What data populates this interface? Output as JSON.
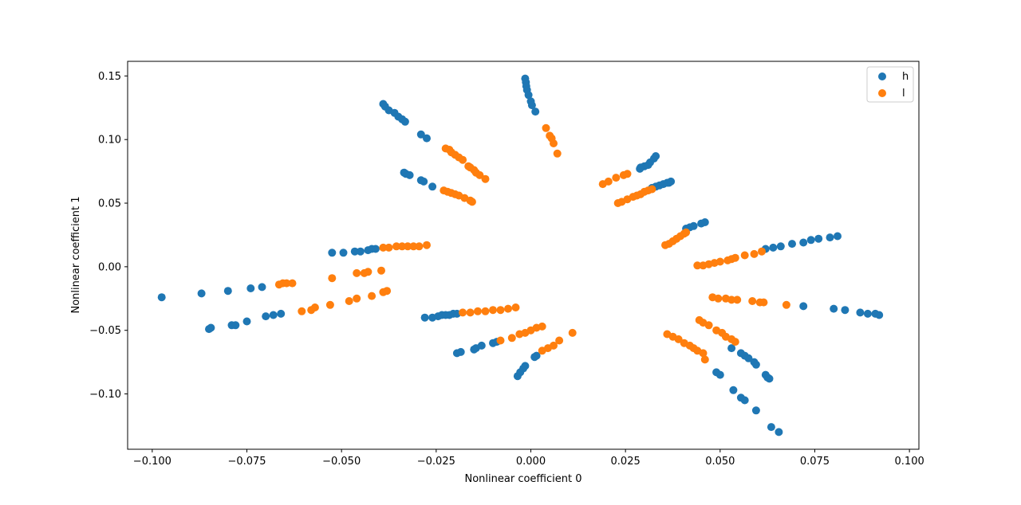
{
  "chart_data": {
    "type": "scatter",
    "title": "",
    "xlabel": "Nonlinear coefficient 0",
    "ylabel": "Nonlinear coefficient 1",
    "xlim": [
      -0.1065,
      0.1025
    ],
    "ylim": [
      -0.1435,
      0.1615
    ],
    "xticks": [
      -0.1,
      -0.075,
      -0.05,
      -0.025,
      0.0,
      0.025,
      0.05,
      0.075,
      0.1
    ],
    "xtick_labels": [
      "−0.100",
      "−0.075",
      "−0.050",
      "−0.025",
      "0.000",
      "0.025",
      "0.050",
      "0.075",
      "0.100"
    ],
    "yticks": [
      -0.1,
      -0.05,
      0.0,
      0.05,
      0.1,
      0.15
    ],
    "ytick_labels": [
      "−0.10",
      "−0.05",
      "0.00",
      "0.05",
      "0.10",
      "0.15"
    ],
    "grid": false,
    "legend_position": "top-right",
    "series": [
      {
        "name": "h",
        "color": "#1f77b4",
        "points": [
          [
            -0.0015,
            0.148
          ],
          [
            -0.0013,
            0.145
          ],
          [
            -0.0012,
            0.142
          ],
          [
            -0.001,
            0.139
          ],
          [
            -0.0006,
            0.135
          ],
          [
            0.0,
            0.13
          ],
          [
            0.0003,
            0.127
          ],
          [
            0.0012,
            0.122
          ],
          [
            -0.039,
            0.128
          ],
          [
            -0.0385,
            0.126
          ],
          [
            -0.0375,
            0.123
          ],
          [
            -0.036,
            0.121
          ],
          [
            -0.035,
            0.118
          ],
          [
            -0.034,
            0.116
          ],
          [
            -0.0332,
            0.114
          ],
          [
            -0.029,
            0.104
          ],
          [
            -0.0275,
            0.101
          ],
          [
            -0.0335,
            0.074
          ],
          [
            -0.033,
            0.073
          ],
          [
            -0.032,
            0.072
          ],
          [
            -0.029,
            0.068
          ],
          [
            -0.0283,
            0.067
          ],
          [
            -0.026,
            0.063
          ],
          [
            0.031,
            0.08
          ],
          [
            0.0315,
            0.082
          ],
          [
            0.0325,
            0.085
          ],
          [
            0.033,
            0.087
          ],
          [
            0.03,
            0.079
          ],
          [
            0.029,
            0.078
          ],
          [
            0.0288,
            0.077
          ],
          [
            0.032,
            0.062
          ],
          [
            0.033,
            0.063
          ],
          [
            0.034,
            0.064
          ],
          [
            0.035,
            0.065
          ],
          [
            0.036,
            0.066
          ],
          [
            0.0365,
            0.066
          ],
          [
            0.037,
            0.067
          ],
          [
            0.041,
            0.03
          ],
          [
            0.042,
            0.031
          ],
          [
            0.043,
            0.032
          ],
          [
            0.045,
            0.034
          ],
          [
            0.046,
            0.035
          ],
          [
            0.062,
            0.014
          ],
          [
            0.064,
            0.015
          ],
          [
            0.066,
            0.016
          ],
          [
            0.069,
            0.018
          ],
          [
            0.072,
            0.019
          ],
          [
            0.074,
            0.021
          ],
          [
            0.076,
            0.022
          ],
          [
            0.079,
            0.023
          ],
          [
            0.081,
            0.024
          ],
          [
            0.072,
            -0.031
          ],
          [
            0.08,
            -0.033
          ],
          [
            0.083,
            -0.034
          ],
          [
            0.087,
            -0.036
          ],
          [
            0.089,
            -0.037
          ],
          [
            0.091,
            -0.037
          ],
          [
            0.092,
            -0.038
          ],
          [
            -0.0975,
            -0.024
          ],
          [
            -0.087,
            -0.021
          ],
          [
            -0.08,
            -0.019
          ],
          [
            -0.074,
            -0.017
          ],
          [
            -0.071,
            -0.016
          ],
          [
            -0.085,
            -0.049
          ],
          [
            -0.0845,
            -0.048
          ],
          [
            -0.079,
            -0.046
          ],
          [
            -0.078,
            -0.046
          ],
          [
            -0.075,
            -0.043
          ],
          [
            -0.07,
            -0.039
          ],
          [
            -0.068,
            -0.038
          ],
          [
            -0.066,
            -0.037
          ],
          [
            -0.0525,
            0.011
          ],
          [
            -0.0495,
            0.011
          ],
          [
            -0.0465,
            0.012
          ],
          [
            -0.045,
            0.012
          ],
          [
            -0.043,
            0.013
          ],
          [
            -0.042,
            0.014
          ],
          [
            -0.041,
            0.014
          ],
          [
            -0.028,
            -0.04
          ],
          [
            -0.026,
            -0.04
          ],
          [
            -0.0245,
            -0.039
          ],
          [
            -0.0235,
            -0.038
          ],
          [
            -0.0225,
            -0.038
          ],
          [
            -0.0215,
            -0.038
          ],
          [
            -0.0205,
            -0.037
          ],
          [
            -0.0195,
            -0.037
          ],
          [
            -0.0195,
            -0.068
          ],
          [
            -0.0185,
            -0.067
          ],
          [
            -0.015,
            -0.065
          ],
          [
            -0.0145,
            -0.064
          ],
          [
            -0.013,
            -0.062
          ],
          [
            -0.01,
            -0.06
          ],
          [
            -0.009,
            -0.059
          ],
          [
            -0.0035,
            -0.086
          ],
          [
            -0.0028,
            -0.083
          ],
          [
            -0.002,
            -0.08
          ],
          [
            -0.0015,
            -0.078
          ],
          [
            0.001,
            -0.071
          ],
          [
            0.0015,
            -0.07
          ],
          [
            0.053,
            -0.064
          ],
          [
            0.0555,
            -0.068
          ],
          [
            0.0565,
            -0.07
          ],
          [
            0.0575,
            -0.072
          ],
          [
            0.059,
            -0.075
          ],
          [
            0.0595,
            -0.077
          ],
          [
            0.049,
            -0.083
          ],
          [
            0.05,
            -0.085
          ],
          [
            0.0535,
            -0.097
          ],
          [
            0.0555,
            -0.103
          ],
          [
            0.0565,
            -0.105
          ],
          [
            0.0595,
            -0.113
          ],
          [
            0.062,
            -0.085
          ],
          [
            0.0625,
            -0.087
          ],
          [
            0.063,
            -0.088
          ],
          [
            0.0635,
            -0.126
          ],
          [
            0.0655,
            -0.13
          ]
        ]
      },
      {
        "name": "l",
        "color": "#ff7f0e",
        "points": [
          [
            0.004,
            0.109
          ],
          [
            0.005,
            0.103
          ],
          [
            0.0055,
            0.101
          ],
          [
            0.006,
            0.097
          ],
          [
            0.007,
            0.089
          ],
          [
            -0.0225,
            0.093
          ],
          [
            -0.0215,
            0.092
          ],
          [
            -0.021,
            0.09
          ],
          [
            -0.02,
            0.088
          ],
          [
            -0.019,
            0.086
          ],
          [
            -0.018,
            0.084
          ],
          [
            -0.0165,
            0.079
          ],
          [
            -0.016,
            0.078
          ],
          [
            -0.015,
            0.076
          ],
          [
            -0.0145,
            0.074
          ],
          [
            -0.0135,
            0.072
          ],
          [
            -0.012,
            0.069
          ],
          [
            -0.023,
            0.06
          ],
          [
            -0.022,
            0.059
          ],
          [
            -0.021,
            0.058
          ],
          [
            -0.02,
            0.057
          ],
          [
            -0.019,
            0.056
          ],
          [
            -0.0175,
            0.054
          ],
          [
            -0.016,
            0.052
          ],
          [
            -0.0155,
            0.051
          ],
          [
            0.019,
            0.065
          ],
          [
            0.0205,
            0.067
          ],
          [
            0.0225,
            0.07
          ],
          [
            0.0245,
            0.072
          ],
          [
            0.0255,
            0.073
          ],
          [
            0.023,
            0.05
          ],
          [
            0.024,
            0.051
          ],
          [
            0.0255,
            0.053
          ],
          [
            0.027,
            0.055
          ],
          [
            0.028,
            0.056
          ],
          [
            0.029,
            0.057
          ],
          [
            0.03,
            0.059
          ],
          [
            0.031,
            0.06
          ],
          [
            0.032,
            0.061
          ],
          [
            0.0355,
            0.017
          ],
          [
            0.0365,
            0.018
          ],
          [
            0.0375,
            0.02
          ],
          [
            0.0385,
            0.022
          ],
          [
            0.0395,
            0.024
          ],
          [
            0.0405,
            0.026
          ],
          [
            0.041,
            0.027
          ],
          [
            0.044,
            0.001
          ],
          [
            0.0455,
            0.001
          ],
          [
            0.047,
            0.002
          ],
          [
            0.0485,
            0.003
          ],
          [
            0.05,
            0.004
          ],
          [
            0.052,
            0.005
          ],
          [
            0.053,
            0.006
          ],
          [
            0.054,
            0.007
          ],
          [
            0.0565,
            0.009
          ],
          [
            0.059,
            0.01
          ],
          [
            0.061,
            0.012
          ],
          [
            0.048,
            -0.024
          ],
          [
            0.0495,
            -0.025
          ],
          [
            0.0515,
            -0.025
          ],
          [
            0.053,
            -0.026
          ],
          [
            0.0545,
            -0.026
          ],
          [
            0.0585,
            -0.027
          ],
          [
            0.0605,
            -0.028
          ],
          [
            0.0615,
            -0.028
          ],
          [
            0.0675,
            -0.03
          ],
          [
            0.036,
            -0.053
          ],
          [
            0.0375,
            -0.055
          ],
          [
            0.039,
            -0.057
          ],
          [
            0.0405,
            -0.06
          ],
          [
            0.042,
            -0.062
          ],
          [
            0.043,
            -0.064
          ],
          [
            0.044,
            -0.066
          ],
          [
            0.0455,
            -0.068
          ],
          [
            0.046,
            -0.073
          ],
          [
            0.0445,
            -0.042
          ],
          [
            0.0455,
            -0.044
          ],
          [
            0.047,
            -0.046
          ],
          [
            0.049,
            -0.05
          ],
          [
            0.0505,
            -0.052
          ],
          [
            0.0515,
            -0.055
          ],
          [
            0.053,
            -0.057
          ],
          [
            0.054,
            -0.059
          ],
          [
            -0.0665,
            -0.014
          ],
          [
            -0.0655,
            -0.013
          ],
          [
            -0.0645,
            -0.013
          ],
          [
            -0.063,
            -0.013
          ],
          [
            -0.0525,
            -0.009
          ],
          [
            -0.046,
            -0.005
          ],
          [
            -0.044,
            -0.005
          ],
          [
            -0.043,
            -0.004
          ],
          [
            -0.0395,
            -0.003
          ],
          [
            -0.039,
            0.015
          ],
          [
            -0.0375,
            0.015
          ],
          [
            -0.0355,
            0.016
          ],
          [
            -0.034,
            0.016
          ],
          [
            -0.0325,
            0.016
          ],
          [
            -0.031,
            0.016
          ],
          [
            -0.0295,
            0.016
          ],
          [
            -0.0275,
            0.017
          ],
          [
            -0.0605,
            -0.035
          ],
          [
            -0.058,
            -0.034
          ],
          [
            -0.057,
            -0.032
          ],
          [
            -0.053,
            -0.03
          ],
          [
            -0.048,
            -0.027
          ],
          [
            -0.046,
            -0.025
          ],
          [
            -0.042,
            -0.023
          ],
          [
            -0.039,
            -0.02
          ],
          [
            -0.038,
            -0.019
          ],
          [
            -0.018,
            -0.036
          ],
          [
            -0.016,
            -0.036
          ],
          [
            -0.014,
            -0.035
          ],
          [
            -0.012,
            -0.035
          ],
          [
            -0.01,
            -0.034
          ],
          [
            -0.008,
            -0.034
          ],
          [
            -0.006,
            -0.033
          ],
          [
            -0.004,
            -0.032
          ],
          [
            -0.003,
            -0.053
          ],
          [
            -0.0015,
            -0.052
          ],
          [
            0.0,
            -0.05
          ],
          [
            0.0015,
            -0.048
          ],
          [
            0.003,
            -0.047
          ],
          [
            0.011,
            -0.052
          ],
          [
            -0.008,
            -0.058
          ],
          [
            -0.005,
            -0.056
          ],
          [
            0.003,
            -0.066
          ],
          [
            0.0045,
            -0.064
          ],
          [
            0.006,
            -0.062
          ],
          [
            0.0075,
            -0.058
          ]
        ]
      }
    ]
  }
}
